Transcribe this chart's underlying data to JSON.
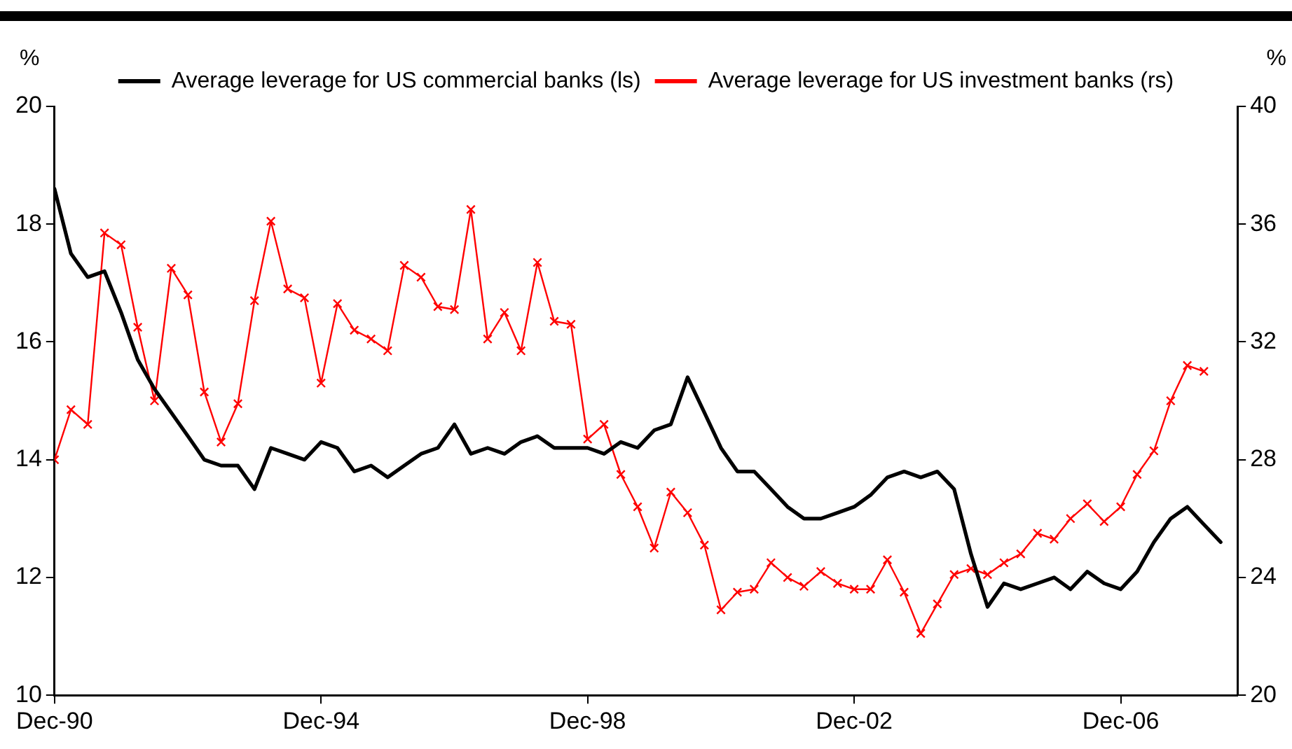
{
  "chart_data": {
    "type": "line",
    "ylabel": "%",
    "y2label": "%",
    "x": [
      "1990-12",
      "1991-03",
      "1991-06",
      "1991-09",
      "1991-12",
      "1992-03",
      "1992-06",
      "1992-09",
      "1992-12",
      "1993-03",
      "1993-06",
      "1993-09",
      "1993-12",
      "1994-03",
      "1994-06",
      "1994-09",
      "1994-12",
      "1995-03",
      "1995-06",
      "1995-09",
      "1995-12",
      "1996-03",
      "1996-06",
      "1996-09",
      "1996-12",
      "1997-03",
      "1997-06",
      "1997-09",
      "1997-12",
      "1998-03",
      "1998-06",
      "1998-09",
      "1998-12",
      "1999-03",
      "1999-06",
      "1999-09",
      "1999-12",
      "2000-03",
      "2000-06",
      "2000-09",
      "2000-12",
      "2001-03",
      "2001-06",
      "2001-09",
      "2001-12",
      "2002-03",
      "2002-06",
      "2002-09",
      "2002-12",
      "2003-03",
      "2003-06",
      "2003-09",
      "2003-12",
      "2004-03",
      "2004-06",
      "2004-09",
      "2004-12",
      "2005-03",
      "2005-06",
      "2005-09",
      "2005-12",
      "2006-03",
      "2006-06",
      "2006-09",
      "2006-12",
      "2007-03",
      "2007-06",
      "2007-09",
      "2007-12",
      "2008-03",
      "2008-06"
    ],
    "series": [
      {
        "name": "Average leverage for US commercial banks (ls)",
        "color": "#000000",
        "marker": "none",
        "values": [
          18.6,
          17.5,
          17.1,
          17.2,
          16.5,
          15.7,
          15.2,
          14.8,
          14.4,
          14.0,
          13.9,
          13.9,
          13.5,
          14.2,
          14.1,
          14.0,
          14.3,
          14.2,
          13.8,
          13.9,
          13.7,
          13.9,
          14.1,
          14.2,
          14.6,
          14.1,
          14.2,
          14.1,
          14.3,
          14.4,
          14.2,
          14.2,
          14.2,
          14.1,
          14.3,
          14.2,
          14.5,
          14.6,
          15.4,
          14.8,
          14.2,
          13.8,
          13.8,
          13.5,
          13.2,
          13.0,
          13.0,
          13.1,
          13.2,
          13.4,
          13.7,
          13.8,
          13.7,
          13.8,
          13.5,
          12.4,
          11.5,
          11.9,
          11.8,
          11.9,
          12.0,
          11.8,
          12.1,
          11.9,
          11.8,
          12.1,
          12.6,
          13.0,
          13.2,
          12.9,
          12.6
        ]
      },
      {
        "name": "Average leverage for US investment banks (rs)",
        "color": "#ff0000",
        "marker": "cross",
        "axis": "y2",
        "values": [
          28.0,
          29.7,
          29.2,
          35.7,
          35.3,
          32.5,
          30.0,
          34.5,
          33.6,
          30.3,
          28.6,
          29.9,
          33.4,
          36.1,
          33.8,
          33.5,
          30.6,
          33.3,
          32.4,
          32.1,
          31.7,
          34.6,
          34.2,
          33.2,
          33.1,
          36.5,
          32.1,
          33.0,
          31.7,
          34.7,
          32.7,
          32.6,
          28.7,
          29.2,
          27.5,
          26.4,
          25.0,
          26.9,
          26.2,
          25.1,
          22.9,
          23.5,
          23.6,
          24.5,
          24.0,
          23.7,
          24.2,
          23.8,
          23.6,
          23.6,
          24.6,
          23.5,
          22.1,
          23.1,
          24.1,
          24.3,
          24.1,
          24.5,
          24.8,
          25.5,
          25.3,
          26.0,
          26.5,
          25.9,
          26.4,
          27.5,
          28.3,
          30.0,
          31.2,
          31.0,
          null
        ]
      }
    ],
    "xlim": [
      "1990-12",
      "2008-09"
    ],
    "xticks": [
      {
        "value": "1990-12",
        "label": "Dec-90"
      },
      {
        "value": "1994-12",
        "label": "Dec-94"
      },
      {
        "value": "1998-12",
        "label": "Dec-98"
      },
      {
        "value": "2002-12",
        "label": "Dec-02"
      },
      {
        "value": "2006-12",
        "label": "Dec-06"
      }
    ],
    "ylim": [
      10,
      20
    ],
    "yticks": [
      10,
      12,
      14,
      16,
      18,
      20
    ],
    "y2lim": [
      20,
      40
    ],
    "y2ticks": [
      20,
      24,
      28,
      32,
      36,
      40
    ],
    "grid": false,
    "legend": "top",
    "line_style": "solid"
  }
}
